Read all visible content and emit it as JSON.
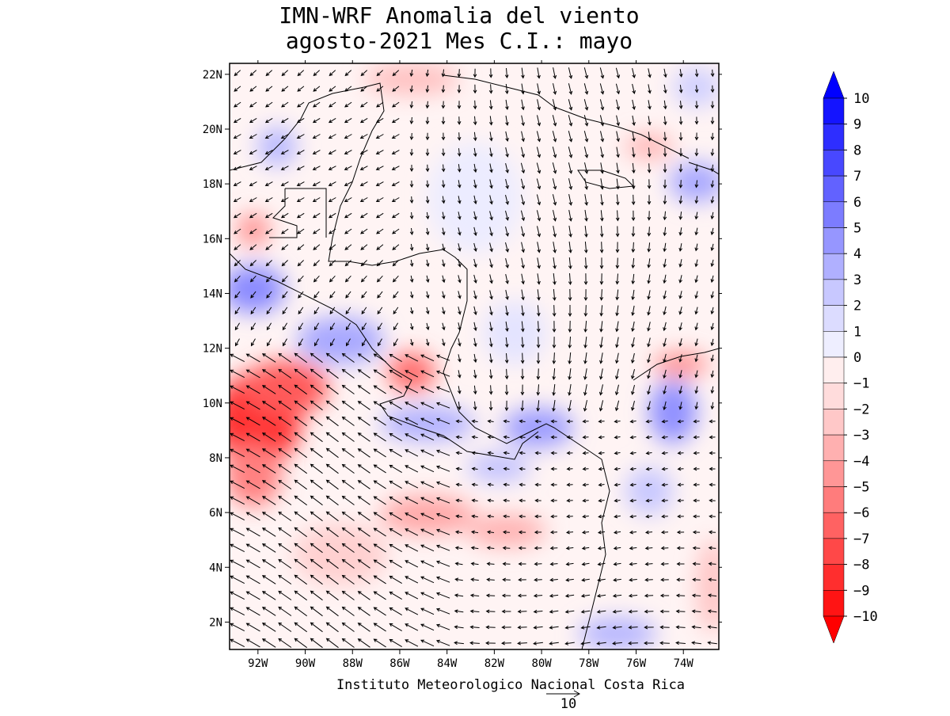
{
  "title": {
    "line1": "IMN-WRF Anomalia del viento",
    "line2": "agosto-2021 Mes C.I.: mayo"
  },
  "axes": {
    "x_ticks": [
      "92W",
      "90W",
      "88W",
      "86W",
      "84W",
      "82W",
      "80W",
      "78W",
      "76W",
      "74W"
    ],
    "x_values": [
      -92,
      -90,
      -88,
      -86,
      -84,
      -82,
      -80,
      -78,
      -76,
      -74
    ],
    "y_ticks": [
      "22N",
      "20N",
      "18N",
      "16N",
      "14N",
      "12N",
      "10N",
      "8N",
      "6N",
      "4N",
      "2N"
    ],
    "y_values": [
      22,
      20,
      18,
      16,
      14,
      12,
      10,
      8,
      6,
      4,
      2
    ],
    "lon_range": [
      -93.2,
      -72.5
    ],
    "lat_range": [
      1.0,
      22.4
    ]
  },
  "footer": {
    "credit": "Instituto Meteorologico Nacional Costa Rica",
    "vector_ref_label": "10"
  },
  "colorbar": {
    "labels": [
      "10",
      "9",
      "8",
      "7",
      "6",
      "5",
      "4",
      "3",
      "2",
      "1",
      "0",
      "−1",
      "−2",
      "−3",
      "−4",
      "−5",
      "−6",
      "−7",
      "−8",
      "−9",
      "−10"
    ],
    "colors": [
      "#1414ff",
      "#2e2eff",
      "#4848ff",
      "#6262ff",
      "#7c7cff",
      "#9696ff",
      "#b0b0ff",
      "#c8c8ff",
      "#dcdcff",
      "#eeeeff",
      "#ffeeee",
      "#ffdcdc",
      "#ffc8c8",
      "#ffb0b0",
      "#ff9696",
      "#ff7c7c",
      "#ff6262",
      "#ff4848",
      "#ff2e2e",
      "#ff1414"
    ],
    "top_arrow_color": "#0000ff",
    "bottom_arrow_color": "#ff0000"
  },
  "colors": {
    "positive": "#3c3cff",
    "negative": "#ff2a2a",
    "coast": "#000000"
  }
}
